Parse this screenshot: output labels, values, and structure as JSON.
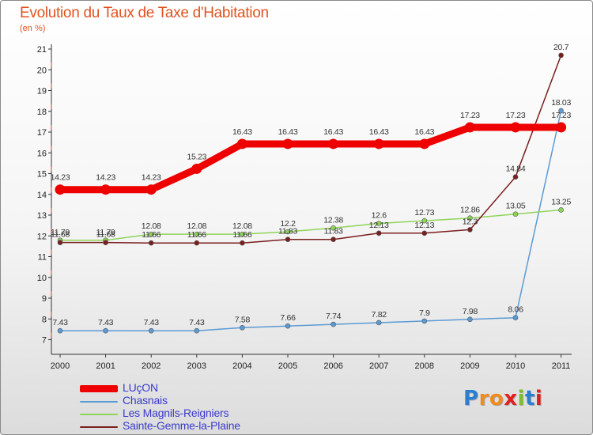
{
  "title": "Evolution du Taux de Taxe d'Habitation",
  "subtitle": "(en %)",
  "logo": {
    "text": "Proxiti",
    "letters": [
      "P",
      "r",
      "o",
      "x",
      "i",
      "t",
      "i"
    ],
    "colors": [
      "#2a7fd0",
      "#f08a1c",
      "#f08a1c",
      "#e02020",
      "#7bbf2a",
      "#2a7fd0",
      "#e02020"
    ]
  },
  "chart_data": {
    "type": "line",
    "title": "Evolution du Taux de Taxe d'Habitation",
    "ylabel": "(en %)",
    "x": [
      "2000",
      "2001",
      "2002",
      "2003",
      "2004",
      "2005",
      "2006",
      "2007",
      "2008",
      "2009",
      "2010",
      "2011"
    ],
    "ylim": [
      7,
      21
    ],
    "yticks": [
      7,
      8,
      9,
      10,
      11,
      12,
      13,
      14,
      15,
      16,
      17,
      18,
      19,
      20,
      21
    ],
    "grid": false,
    "legend_position": "bottom-left",
    "series": [
      {
        "name": "LUçON",
        "color": "#ee0000",
        "emphasis": true,
        "values": [
          14.23,
          14.23,
          14.23,
          15.23,
          16.43,
          16.43,
          16.43,
          16.43,
          16.43,
          17.23,
          17.23,
          17.23
        ],
        "labels": [
          "14.23",
          "14.23",
          "14.23",
          "15.23",
          "16.43",
          "16.43",
          "16.43",
          "16.43",
          "16.43",
          "17.23",
          "17.23",
          "17.23"
        ]
      },
      {
        "name": "Chasnais",
        "color": "#5b9bd5",
        "emphasis": false,
        "values": [
          7.43,
          7.43,
          7.43,
          7.43,
          7.58,
          7.66,
          7.74,
          7.82,
          7.9,
          7.98,
          8.06,
          18.03
        ],
        "labels": [
          "7.43",
          "7.43",
          "7.43",
          "7.43",
          "7.58",
          "7.66",
          "7.74",
          "7.82",
          "7.9",
          "7.98",
          "8.06",
          "18.03"
        ]
      },
      {
        "name": "Les Magnils-Reigniers",
        "color": "#8fd45a",
        "emphasis": false,
        "values": [
          11.79,
          11.79,
          12.08,
          12.08,
          12.08,
          12.2,
          12.38,
          12.6,
          12.73,
          12.86,
          13.05,
          13.25
        ],
        "labels": [
          "11.79",
          "11.79",
          "12.08",
          "12.08",
          "12.08",
          "12.2",
          "12.38",
          "12.6",
          "12.73",
          "12.86",
          "13.05",
          "13.25"
        ]
      },
      {
        "name": "Sainte-Gemme-la-Plaine",
        "color": "#7a1f1f",
        "emphasis": false,
        "values": [
          11.68,
          11.68,
          11.66,
          11.66,
          11.66,
          11.83,
          11.83,
          12.13,
          12.13,
          12.3,
          14.84,
          20.7
        ],
        "labels": [
          "11.68",
          "11.68",
          "11.66",
          "11.66",
          "11.66",
          "11.83",
          "11.83",
          "12.13",
          "12.13",
          "12.3",
          "14.84",
          "20.7"
        ]
      }
    ]
  }
}
